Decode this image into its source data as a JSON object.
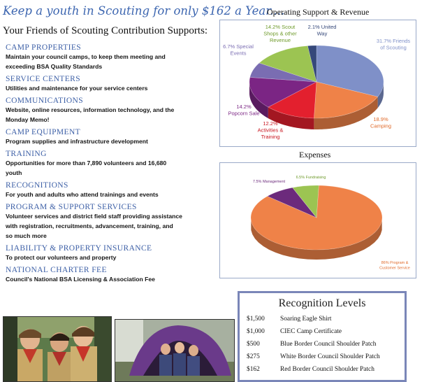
{
  "headline": "Keep a youth in Scouting for only $162 a Year....",
  "subheading": "Your Friends of Scouting Contribution Supports:",
  "supports": [
    {
      "title": "CAMP PROPERTIES",
      "lines": [
        "Maintain your council camps, to keep them meeting and",
        "exceeding BSA Quality Standards"
      ]
    },
    {
      "title": "SERVICE CENTERS",
      "lines": [
        "Utilities and maintenance for your service centers"
      ]
    },
    {
      "title": "COMMUNICATIONS",
      "lines": [
        "Website, online resources, information technology, and  the",
        "Monday Memo!"
      ]
    },
    {
      "title": "CAMP EQUIPMENT",
      "lines": [
        "Program supplies and infrastructure development"
      ]
    },
    {
      "title": "TRAINING",
      "lines": [
        "Opportunities for more than 7,890 volunteers and 16,680",
        "youth"
      ]
    },
    {
      "title": "RECOGNITIONS",
      "lines": [
        "For youth and adults who attend trainings and events"
      ]
    },
    {
      "title": "PROGRAM & SUPPORT SERVICES",
      "lines": [
        "Volunteer services and district field staff providing assistance",
        "with registration, recruitments, advancement,  training, and",
        "so much more"
      ]
    },
    {
      "title": "LIABILITY & PROPERTY  INSURANCE",
      "lines": [
        "To protect our volunteers and property"
      ]
    },
    {
      "title": "NATIONAL CHARTER FEE",
      "lines": [
        "Council's National BSA Licensing & Association Fee"
      ]
    }
  ],
  "chart_data": [
    {
      "type": "pie",
      "title": "Operating Support & Revenue",
      "slices": [
        {
          "label": "Friends of Scouting",
          "value": 31.7,
          "display": [
            "31.7% Friends",
            "of Scouting"
          ],
          "color": "#7f90c8",
          "label_color": "#7f90c8"
        },
        {
          "label": "Camping",
          "value": 18.9,
          "display": [
            "18.9%",
            "Camping"
          ],
          "color": "#ef8248",
          "label_color": "#e06a2a"
        },
        {
          "label": "Activities & Training",
          "value": 12.2,
          "display": [
            "12.2%",
            "Activities &",
            "Training"
          ],
          "color": "#e3202e",
          "label_color": "#c8151f"
        },
        {
          "label": "Popcorn Sale",
          "value": 14.2,
          "display": [
            "14.2%",
            "Popcorn Sale"
          ],
          "color": "#7b2584",
          "label_color": "#7b2584"
        },
        {
          "label": "Special Events",
          "value": 6.7,
          "display": [
            "6.7% Special",
            "Events"
          ],
          "color": "#7a6db2",
          "label_color": "#7a6db2"
        },
        {
          "label": "Scout Shops & other Revenue",
          "value": 14.2,
          "display": [
            "14.2% Scout",
            "Shops & other",
            "Revenue"
          ],
          "color": "#9cc452",
          "label_color": "#6e9a2a"
        },
        {
          "label": "United Way",
          "value": 2.1,
          "display": [
            "2.1% United",
            "Way"
          ],
          "color": "#35487a",
          "label_color": "#35487a"
        }
      ]
    },
    {
      "type": "pie",
      "title": "Expenses",
      "slices": [
        {
          "label": "Program & Customer Service",
          "value": 86,
          "display": [
            "86% Program &",
            "Customer Service"
          ],
          "color": "#ef8248",
          "label_color": "#e06a2a"
        },
        {
          "label": "Management",
          "value": 7.5,
          "display": [
            "7.5% Management"
          ],
          "color": "#6c2a7c",
          "label_color": "#6c2a7c"
        },
        {
          "label": "Fundraising",
          "value": 6.5,
          "display": [
            "6.5% Fundraising"
          ],
          "color": "#9cc452",
          "label_color": "#6e9a2a"
        }
      ]
    }
  ],
  "recognition": {
    "title": "Recognition Levels",
    "levels": [
      {
        "amount": "$1,500",
        "item": "Soaring Eagle Shirt"
      },
      {
        "amount": "$1,000",
        "item": "CIEC Camp Certificate"
      },
      {
        "amount": "$500",
        "item": "Blue Border Council Shoulder Patch"
      },
      {
        "amount": "$275",
        "item": "White Border Council Shoulder Patch"
      },
      {
        "amount": "$162",
        "item": "Red Border Council Shoulder Patch"
      }
    ]
  }
}
